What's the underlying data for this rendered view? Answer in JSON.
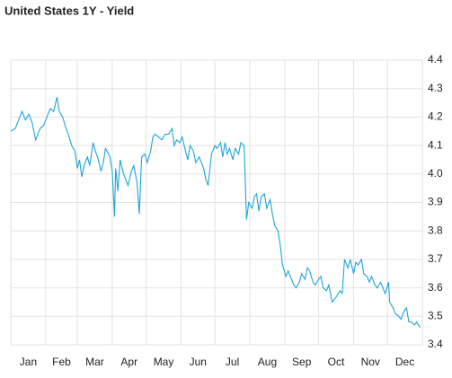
{
  "chart_data": {
    "type": "line",
    "title": "United States 1Y - Yield",
    "x": [
      0,
      4,
      8,
      10,
      13,
      16,
      19,
      22,
      26,
      29,
      32,
      35,
      38,
      41,
      43,
      46,
      49,
      51,
      54,
      57,
      59,
      61,
      63,
      65,
      68,
      70,
      73,
      75,
      77,
      80,
      82,
      84,
      88,
      90,
      92,
      93,
      95,
      97,
      100,
      102,
      104,
      107,
      109,
      112,
      114,
      116,
      119,
      121,
      124,
      126,
      128,
      131,
      134,
      137,
      140,
      143,
      145,
      147,
      150,
      152,
      155,
      157,
      159,
      162,
      164,
      167,
      171,
      173,
      175,
      178,
      181,
      183,
      186,
      188,
      190,
      192,
      194,
      197,
      199,
      202,
      204,
      207,
      209,
      211,
      214,
      216,
      218,
      220,
      222,
      225,
      227,
      230,
      232,
      234,
      237,
      239,
      241,
      244,
      246,
      249,
      251,
      253,
      256,
      258,
      261,
      263,
      265,
      268,
      270,
      273,
      275,
      277,
      280,
      282,
      285,
      287,
      289,
      292,
      294,
      296,
      299,
      301,
      304,
      306,
      308,
      311,
      313,
      316,
      318,
      320,
      323,
      325,
      328,
      330,
      332,
      335,
      336,
      339,
      341,
      344,
      346,
      349,
      351,
      353,
      355,
      358,
      360,
      363
    ],
    "series": [
      {
        "color": "#1ea4d8",
        "values": [
          4.15,
          4.16,
          4.2,
          4.22,
          4.19,
          4.21,
          4.18,
          4.12,
          4.16,
          4.17,
          4.2,
          4.23,
          4.22,
          4.27,
          4.22,
          4.2,
          4.16,
          4.14,
          4.1,
          4.08,
          4.02,
          4.05,
          3.99,
          4.03,
          4.06,
          4.03,
          4.11,
          4.08,
          4.06,
          4.01,
          4.04,
          4.09,
          4.06,
          4.01,
          3.85,
          4.02,
          3.94,
          4.05,
          4.0,
          3.98,
          3.96,
          4.01,
          4.03,
          3.97,
          3.86,
          4.06,
          4.07,
          4.04,
          4.08,
          4.13,
          4.14,
          4.13,
          4.12,
          4.14,
          4.14,
          4.16,
          4.1,
          4.12,
          4.11,
          4.13,
          4.08,
          4.05,
          4.1,
          4.08,
          4.04,
          4.06,
          4.02,
          3.98,
          3.96,
          4.07,
          4.1,
          4.09,
          4.11,
          4.06,
          4.11,
          4.07,
          4.09,
          4.05,
          4.09,
          4.07,
          4.11,
          4.1,
          3.84,
          3.9,
          3.88,
          3.92,
          3.93,
          3.87,
          3.92,
          3.93,
          3.88,
          3.91,
          3.86,
          3.82,
          3.8,
          3.75,
          3.68,
          3.64,
          3.66,
          3.63,
          3.61,
          3.6,
          3.62,
          3.65,
          3.63,
          3.67,
          3.66,
          3.62,
          3.61,
          3.63,
          3.64,
          3.6,
          3.59,
          3.61,
          3.55,
          3.56,
          3.57,
          3.59,
          3.58,
          3.7,
          3.67,
          3.7,
          3.65,
          3.69,
          3.68,
          3.7,
          3.65,
          3.64,
          3.62,
          3.64,
          3.61,
          3.6,
          3.62,
          3.6,
          3.58,
          3.62,
          3.55,
          3.53,
          3.51,
          3.5,
          3.49,
          3.52,
          3.53,
          3.48,
          3.48,
          3.47,
          3.48,
          3.46
        ]
      }
    ],
    "xlim": [
      0,
      365
    ],
    "xticks": [
      {
        "value": 0,
        "label": "Jan"
      },
      {
        "value": 31,
        "label": "Feb"
      },
      {
        "value": 59,
        "label": "Mar"
      },
      {
        "value": 90,
        "label": "Apr"
      },
      {
        "value": 120,
        "label": "May"
      },
      {
        "value": 151,
        "label": "Jun"
      },
      {
        "value": 181,
        "label": "Jul"
      },
      {
        "value": 212,
        "label": "Aug"
      },
      {
        "value": 243,
        "label": "Sep"
      },
      {
        "value": 273,
        "label": "Oct"
      },
      {
        "value": 304,
        "label": "Nov"
      },
      {
        "value": 334,
        "label": "Dec"
      }
    ],
    "ylim": [
      3.4,
      4.4
    ],
    "yticks": [
      3.4,
      3.5,
      3.6,
      3.7,
      3.8,
      3.9,
      {
        "value": 4,
        "label": "4.0"
      },
      4.1,
      4.2,
      4.3,
      4.4
    ],
    "grid": true
  }
}
